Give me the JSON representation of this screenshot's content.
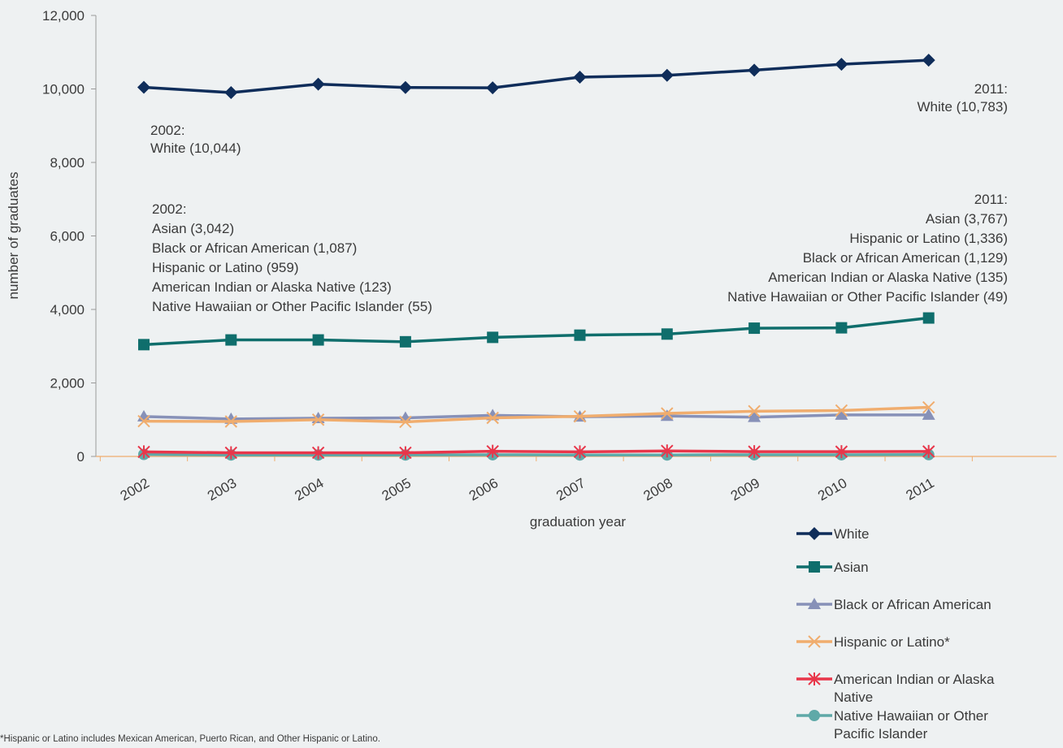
{
  "chart_data": {
    "type": "line",
    "title": "",
    "xlabel": "graduation year",
    "ylabel": "number of graduates",
    "ylim": [
      0,
      12000
    ],
    "yticks": [
      "0",
      "2,000",
      "4,000",
      "6,000",
      "8,000",
      "10,000",
      "12,000"
    ],
    "y_tick_values": [
      0,
      2000,
      4000,
      6000,
      8000,
      10000,
      12000
    ],
    "categories": [
      "2002",
      "2003",
      "2004",
      "2005",
      "2006",
      "2007",
      "2008",
      "2009",
      "2010",
      "2011"
    ],
    "grid": false,
    "legend_position": "bottom-right",
    "series": [
      {
        "name": "White",
        "color": "#0f2d5a",
        "marker": "diamond",
        "values": [
          10044,
          9900,
          10130,
          10040,
          10030,
          10320,
          10370,
          10510,
          10670,
          10783
        ]
      },
      {
        "name": "Asian",
        "color": "#0f6e6c",
        "marker": "square",
        "values": [
          3042,
          3170,
          3170,
          3120,
          3240,
          3300,
          3330,
          3490,
          3500,
          3767
        ]
      },
      {
        "name": "Black or African American",
        "color": "#8791b8",
        "marker": "triangle",
        "values": [
          1087,
          1020,
          1040,
          1050,
          1120,
          1080,
          1100,
          1070,
          1130,
          1129
        ]
      },
      {
        "name": "Hispanic or Latino*",
        "color": "#f0ad6e",
        "marker": "x",
        "values": [
          959,
          950,
          1000,
          940,
          1050,
          1090,
          1170,
          1230,
          1250,
          1336
        ]
      },
      {
        "name": "American Indian or Alaska Native",
        "color": "#e8364a",
        "marker": "star",
        "values": [
          123,
          100,
          100,
          100,
          140,
          125,
          150,
          130,
          130,
          135
        ]
      },
      {
        "name": "Native Hawaiian or Other Pacific Islander",
        "color": "#5fa9a8",
        "marker": "circle",
        "values": [
          55,
          40,
          40,
          40,
          45,
          40,
          40,
          45,
          45,
          49
        ]
      }
    ],
    "annotations": {
      "white_2002": [
        "2002:",
        "White (10,044)"
      ],
      "white_2011": [
        "2011:",
        "White (10,783)"
      ],
      "others_2002": [
        "2002:",
        "Asian (3,042)",
        "Black or African American (1,087)",
        "Hispanic or Latino (959)",
        "American Indian or Alaska Native (123)",
        "Native Hawaiian or Other Pacific Islander (55)"
      ],
      "others_2011": [
        "2011:",
        "Asian (3,767)",
        "Hispanic or Latino (1,336)",
        "Black or African American (1,129)",
        "American Indian or Alaska Native (135)",
        "Native Hawaiian or Other Pacific Islander (49)"
      ]
    },
    "footnote": "*Hispanic or Latino includes Mexican American, Puerto Rican, and Other Hispanic or Latino.",
    "axis_color": "#f0ad6e",
    "y_axis_color": "#9a9a9a"
  }
}
